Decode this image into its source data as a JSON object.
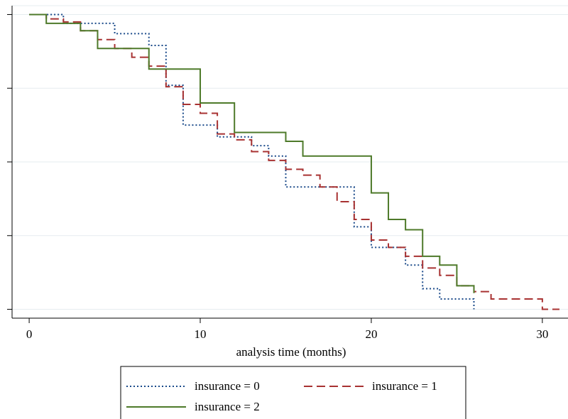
{
  "chart_data": {
    "type": "line",
    "xlabel": "analysis time (months)",
    "ylabel": "",
    "xlim": [
      -1,
      31.5
    ],
    "ylim": [
      -0.03,
      1.03
    ],
    "xticks": [
      0,
      10,
      20,
      30
    ],
    "xtick_labels": [
      "0",
      "10",
      "20",
      "30"
    ],
    "yticks": [
      0,
      0.25,
      0.5,
      0.75,
      1
    ],
    "grid": true,
    "step": true,
    "legend_position": "bottom",
    "series": [
      {
        "name": "insurance = 0",
        "color": "#1a4a8a",
        "dash": "dotted",
        "x": [
          0,
          2,
          5,
          7,
          8,
          9,
          11,
          13,
          14,
          15,
          19,
          20,
          22,
          23,
          24,
          25,
          26
        ],
        "y": [
          1.0,
          0.97,
          0.935,
          0.895,
          0.76,
          0.625,
          0.585,
          0.555,
          0.52,
          0.415,
          0.28,
          0.21,
          0.15,
          0.07,
          0.035,
          0.035,
          0.0
        ]
      },
      {
        "name": "insurance = 1",
        "color": "#a83232",
        "dash": "dashed",
        "x": [
          0,
          1,
          2,
          3,
          4,
          5,
          6,
          7,
          8,
          9,
          10,
          11,
          12,
          13,
          14,
          15,
          16,
          17,
          18,
          19,
          20,
          21,
          22,
          23,
          24,
          25,
          26,
          27,
          30,
          31
        ],
        "y": [
          1.0,
          0.985,
          0.975,
          0.945,
          0.915,
          0.885,
          0.855,
          0.825,
          0.755,
          0.695,
          0.665,
          0.595,
          0.575,
          0.535,
          0.505,
          0.475,
          0.455,
          0.415,
          0.365,
          0.305,
          0.235,
          0.21,
          0.18,
          0.14,
          0.115,
          0.08,
          0.06,
          0.035,
          0.0,
          0.0
        ]
      },
      {
        "name": "insurance = 2",
        "color": "#4e7a2a",
        "dash": "solid",
        "x": [
          0,
          1,
          3,
          4,
          7,
          9,
          10,
          12,
          14,
          15,
          16,
          19,
          20,
          21,
          22,
          23,
          24,
          25,
          26
        ],
        "y": [
          1.0,
          0.97,
          0.945,
          0.885,
          0.815,
          0.815,
          0.7,
          0.6,
          0.6,
          0.57,
          0.52,
          0.52,
          0.395,
          0.305,
          0.27,
          0.18,
          0.15,
          0.08,
          0.055
        ]
      }
    ]
  }
}
